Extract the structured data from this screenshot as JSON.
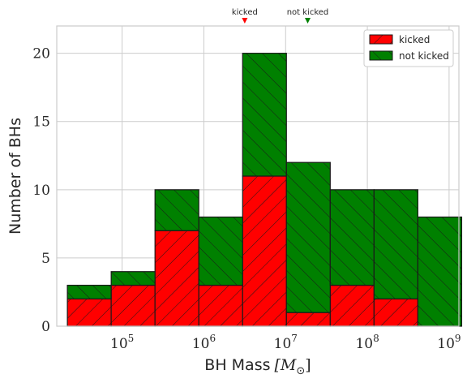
{
  "chart_data": {
    "type": "bar",
    "stacked": true,
    "xscale": "log",
    "xlabel": "BH Mass [M_⊙]",
    "xlabel_text": "BH Mass",
    "xlabel_unit": "[M",
    "xlabel_sub": "⊙",
    "xlabel_close": "]",
    "ylabel": "Number of BHs",
    "ylim": [
      0,
      22
    ],
    "xlim_log10": [
      4.2,
      9.12
    ],
    "grid": true,
    "legend_position": "top-right",
    "x_ticks": [
      {
        "exp": 5,
        "base": "10",
        "sup": "5"
      },
      {
        "exp": 6,
        "base": "10",
        "sup": "6"
      },
      {
        "exp": 7,
        "base": "10",
        "sup": "7"
      },
      {
        "exp": 8,
        "base": "10",
        "sup": "8"
      },
      {
        "exp": 9,
        "base": "10",
        "sup": "9"
      }
    ],
    "y_ticks": [
      0,
      5,
      10,
      15,
      20
    ],
    "bin_edges_log10": [
      4.33,
      4.866,
      5.402,
      5.938,
      6.474,
      7.01,
      7.546,
      8.082,
      8.618,
      9.154
    ],
    "series": [
      {
        "name": "kicked",
        "color": "#ff0000",
        "hatch": "forward",
        "values": [
          2,
          3,
          7,
          3,
          11,
          1,
          3,
          2,
          0
        ]
      },
      {
        "name": "not kicked",
        "color": "#008000",
        "hatch": "backward",
        "values": [
          1,
          1,
          3,
          5,
          9,
          11,
          7,
          8,
          8
        ]
      }
    ],
    "markers": [
      {
        "label": "kicked",
        "log10_mass": 6.5,
        "color": "#ff0000"
      },
      {
        "label": "not kicked",
        "log10_mass": 7.27,
        "color": "#008000"
      }
    ]
  }
}
